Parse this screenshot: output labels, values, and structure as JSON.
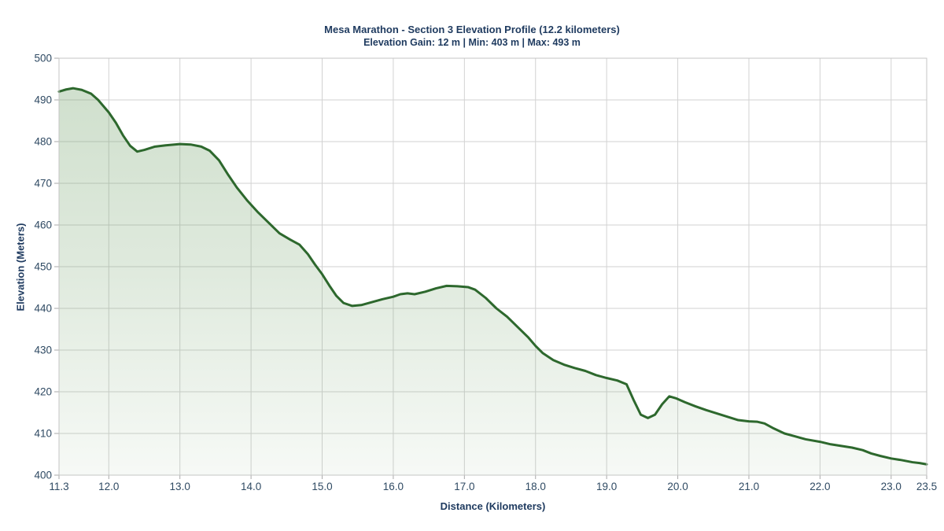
{
  "chart_data": {
    "type": "area",
    "title": "Mesa Marathon - Section 3 Elevation Profile (12.2 kilometers)",
    "subtitle": "Elevation Gain: 12 m | Min: 403 m | Max: 493 m",
    "xlabel": "Distance (Kilometers)",
    "ylabel": "Elevation (Meters)",
    "xlim": [
      11.3,
      23.5
    ],
    "ylim": [
      400,
      500
    ],
    "grid": true,
    "legend": "none",
    "x_ticks": [
      11.3,
      12.0,
      13.0,
      14.0,
      15.0,
      16.0,
      17.0,
      18.0,
      19.0,
      20.0,
      21.0,
      22.0,
      23.0,
      23.5
    ],
    "x_tick_labels": [
      "11.3",
      "12.0",
      "13.0",
      "14.0",
      "15.0",
      "16.0",
      "17.0",
      "18.0",
      "19.0",
      "20.0",
      "21.0",
      "22.0",
      "23.0",
      "23.5"
    ],
    "y_ticks": [
      400,
      410,
      420,
      430,
      440,
      450,
      460,
      470,
      480,
      490,
      500
    ],
    "y_tick_labels": [
      "400",
      "410",
      "420",
      "430",
      "440",
      "450",
      "460",
      "470",
      "480",
      "490",
      "500"
    ],
    "stats": {
      "section_length_km": 12.2,
      "elevation_gain_m": 12,
      "min_elevation_m": 403,
      "max_elevation_m": 493
    },
    "series": [
      {
        "name": "elevation-profile",
        "x": [
          11.3,
          11.4,
          11.5,
          11.62,
          11.75,
          11.85,
          12.0,
          12.1,
          12.2,
          12.3,
          12.4,
          12.5,
          12.65,
          12.8,
          13.0,
          13.15,
          13.3,
          13.42,
          13.55,
          13.68,
          13.8,
          13.95,
          14.1,
          14.25,
          14.4,
          14.55,
          14.68,
          14.8,
          14.9,
          15.0,
          15.1,
          15.2,
          15.3,
          15.42,
          15.55,
          15.7,
          15.85,
          16.0,
          16.1,
          16.2,
          16.3,
          16.45,
          16.6,
          16.75,
          16.9,
          17.05,
          17.15,
          17.3,
          17.45,
          17.6,
          17.75,
          17.9,
          18.0,
          18.1,
          18.25,
          18.4,
          18.55,
          18.7,
          18.85,
          19.0,
          19.15,
          19.28,
          19.38,
          19.48,
          19.58,
          19.68,
          19.78,
          19.88,
          19.98,
          20.1,
          20.25,
          20.4,
          20.55,
          20.7,
          20.85,
          21.0,
          21.12,
          21.22,
          21.35,
          21.5,
          21.65,
          21.8,
          22.0,
          22.15,
          22.3,
          22.45,
          22.6,
          22.72,
          22.85,
          23.0,
          23.15,
          23.3,
          23.4,
          23.5
        ],
        "y": [
          492,
          492.5,
          492.8,
          492.4,
          491.5,
          490,
          487,
          484.5,
          481.5,
          479,
          477.6,
          478,
          478.8,
          479.1,
          479.4,
          479.3,
          478.8,
          477.8,
          475.5,
          472,
          469,
          465.8,
          463,
          460.5,
          458,
          456.5,
          455.3,
          453,
          450.5,
          448.2,
          445.5,
          443,
          441.3,
          440.6,
          440.8,
          441.5,
          442.2,
          442.8,
          443.4,
          443.6,
          443.4,
          444,
          444.8,
          445.4,
          445.3,
          445.1,
          444.5,
          442.5,
          440,
          438,
          435.5,
          433,
          431,
          429.3,
          427.6,
          426.5,
          425.7,
          425,
          424,
          423.3,
          422.7,
          421.8,
          418,
          414.5,
          413.7,
          414.5,
          417,
          418.9,
          418.4,
          417.5,
          416.5,
          415.6,
          414.8,
          414,
          413.2,
          412.9,
          412.8,
          412.4,
          411.2,
          410,
          409.3,
          408.6,
          408,
          407.4,
          407,
          406.6,
          406,
          405.2,
          404.6,
          404,
          403.6,
          403.1,
          402.9,
          402.6
        ]
      }
    ],
    "colors": {
      "line": "#2d682d",
      "fill_base": "109,158,101",
      "fill_alpha_top": 0.34,
      "fill_alpha_mid": 0.22,
      "fill_alpha_bottom": 0.06,
      "grid": "#d2d2d2",
      "border": "#c4c4c4",
      "tick_mark": "#a8a8a8",
      "title_text": "#1e3a5f",
      "tick_text": "#2f4a63"
    }
  }
}
